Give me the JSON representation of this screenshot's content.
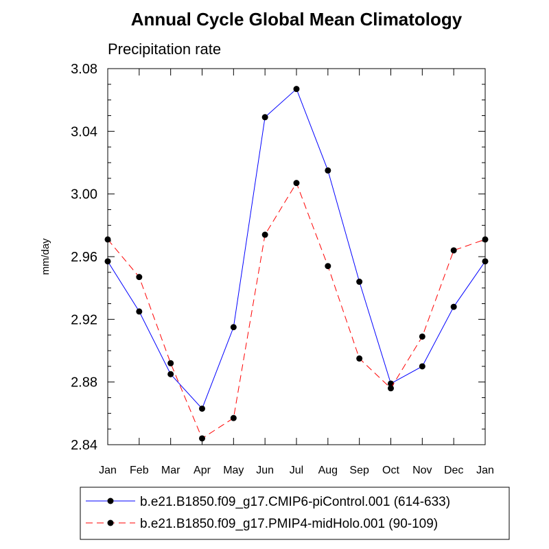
{
  "chart_data": {
    "type": "line",
    "title": "Annual Cycle Global Mean Climatology",
    "subtitle": "Precipitation rate",
    "xlabel": "",
    "ylabel": "mm/day",
    "categories": [
      "Jan",
      "Feb",
      "Mar",
      "Apr",
      "May",
      "Jun",
      "Jul",
      "Aug",
      "Sep",
      "Oct",
      "Nov",
      "Dec",
      "Jan"
    ],
    "ylim": [
      2.84,
      3.08
    ],
    "yticks": [
      2.84,
      2.88,
      2.92,
      2.96,
      3.0,
      3.04,
      3.08
    ],
    "ytick_labels": [
      "2.84",
      "2.88",
      "2.92",
      "2.96",
      "3.00",
      "3.04",
      "3.08"
    ],
    "series": [
      {
        "name": "b.e21.B1850.f09_g17.CMIP6-piControl.001 (614-633)",
        "color": "#0000ff",
        "dash": "solid",
        "values": [
          2.957,
          2.925,
          2.885,
          2.863,
          2.915,
          3.049,
          3.067,
          3.015,
          2.944,
          2.879,
          2.89,
          2.928,
          2.957
        ]
      },
      {
        "name": "b.e21.B1850.f09_g17.PMIP4-midHolo.001 (90-109)",
        "color": "#ff0000",
        "dash": "dashed",
        "values": [
          2.971,
          2.947,
          2.892,
          2.844,
          2.857,
          2.974,
          3.007,
          2.954,
          2.895,
          2.876,
          2.909,
          2.964,
          2.971
        ]
      }
    ],
    "legend_position": "bottom"
  }
}
